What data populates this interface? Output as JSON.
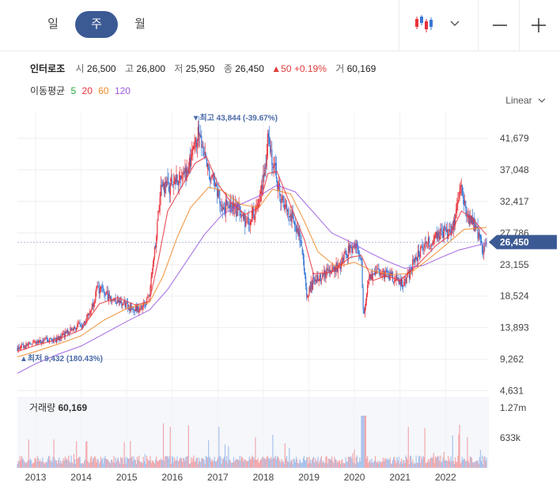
{
  "tabs": [
    "일",
    "주",
    "월"
  ],
  "active_tab": 1,
  "toolbar": {
    "chart_type_icon": "candlestick-chart-icon",
    "zoom_out_icon": "minus-icon",
    "zoom_in_icon": "plus-icon"
  },
  "stock": {
    "name": "인터로조",
    "open_label": "시",
    "open": "26,500",
    "high_label": "고",
    "high": "26,800",
    "low_label": "저",
    "low": "25,950",
    "close_label": "종",
    "close": "26,450",
    "change": "▲50 +0.19%",
    "volume_label": "거",
    "volume": "60,169"
  },
  "moving_average": {
    "label": "이동평균",
    "periods": [
      {
        "value": "5",
        "color": "#22a83a"
      },
      {
        "value": "20",
        "color": "#e8323c"
      },
      {
        "value": "60",
        "color": "#f08a28"
      },
      {
        "value": "120",
        "color": "#9b5be0"
      }
    ]
  },
  "scale_label": "Linear",
  "colors": {
    "up": "#e8323c",
    "down": "#3a78d6",
    "accent": "#3b5a94",
    "ma5": "#22a83a",
    "ma20": "#e8323c",
    "ma60": "#f08a28",
    "ma120": "#9b5be0"
  },
  "chart_data": {
    "type": "candlestick",
    "price_ticks": [
      "41,679",
      "37,048",
      "32,417",
      "27,786",
      "23,155",
      "18,524",
      "13,893",
      "9,262",
      "4,631"
    ],
    "price_tick_values": [
      41679,
      37048,
      32417,
      27786,
      23155,
      18524,
      13893,
      9262,
      4631
    ],
    "ylim": [
      4000,
      45500
    ],
    "x_ticks": [
      "2013",
      "2014",
      "2015",
      "2016",
      "2017",
      "2018",
      "2019",
      "2020",
      "2021",
      "2022"
    ],
    "x_tick_values": [
      2013,
      2014,
      2015,
      2016,
      2017,
      2018,
      2019,
      2020,
      2021,
      2022
    ],
    "xlim": [
      2012.6,
      2022.95
    ],
    "last_price_label": "26,450",
    "last_price": 26450,
    "max_annotation": "▼최고 43,844 (-39.67%)",
    "max_value": 43844,
    "max_x": 2016.57,
    "min_annotation": "▲최저 9,432 (180.43%)",
    "min_value": 9432,
    "min_x": 2012.62,
    "close_path": [
      [
        2012.6,
        10800
      ],
      [
        2012.8,
        11300
      ],
      [
        2013.0,
        11700
      ],
      [
        2013.2,
        12100
      ],
      [
        2013.4,
        12000
      ],
      [
        2013.6,
        12800
      ],
      [
        2013.8,
        13700
      ],
      [
        2014.0,
        14300
      ],
      [
        2014.2,
        16300
      ],
      [
        2014.35,
        19600
      ],
      [
        2014.5,
        19000
      ],
      [
        2014.7,
        18000
      ],
      [
        2014.9,
        17600
      ],
      [
        2015.05,
        17000
      ],
      [
        2015.2,
        16600
      ],
      [
        2015.35,
        17000
      ],
      [
        2015.5,
        18400
      ],
      [
        2015.65,
        27500
      ],
      [
        2015.75,
        34000
      ],
      [
        2015.9,
        34500
      ],
      [
        2016.1,
        35600
      ],
      [
        2016.3,
        36500
      ],
      [
        2016.5,
        40000
      ],
      [
        2016.57,
        43600
      ],
      [
        2016.7,
        39000
      ],
      [
        2016.9,
        35200
      ],
      [
        2017.1,
        32000
      ],
      [
        2017.3,
        31500
      ],
      [
        2017.5,
        31000
      ],
      [
        2017.6,
        29500
      ],
      [
        2017.75,
        30400
      ],
      [
        2017.9,
        32600
      ],
      [
        2018.05,
        37800
      ],
      [
        2018.1,
        42800
      ],
      [
        2018.2,
        38600
      ],
      [
        2018.35,
        33800
      ],
      [
        2018.5,
        31500
      ],
      [
        2018.7,
        29000
      ],
      [
        2018.85,
        26000
      ],
      [
        2018.95,
        18500
      ],
      [
        2019.1,
        20800
      ],
      [
        2019.3,
        21500
      ],
      [
        2019.5,
        22500
      ],
      [
        2019.7,
        23200
      ],
      [
        2019.9,
        25500
      ],
      [
        2020.05,
        25800
      ],
      [
        2020.15,
        23500
      ],
      [
        2020.2,
        15500
      ],
      [
        2020.3,
        21000
      ],
      [
        2020.5,
        22300
      ],
      [
        2020.7,
        21600
      ],
      [
        2020.9,
        21000
      ],
      [
        2021.1,
        20300
      ],
      [
        2021.3,
        23500
      ],
      [
        2021.5,
        25500
      ],
      [
        2021.7,
        26700
      ],
      [
        2021.9,
        28000
      ],
      [
        2022.1,
        27600
      ],
      [
        2022.25,
        31200
      ],
      [
        2022.33,
        34800
      ],
      [
        2022.45,
        30500
      ],
      [
        2022.6,
        29300
      ],
      [
        2022.75,
        27000
      ],
      [
        2022.83,
        25000
      ],
      [
        2022.9,
        26450
      ]
    ],
    "ma20": [
      [
        2012.6,
        10400
      ],
      [
        2013.0,
        11300
      ],
      [
        2013.5,
        12200
      ],
      [
        2014.0,
        13600
      ],
      [
        2014.4,
        17400
      ],
      [
        2014.8,
        18300
      ],
      [
        2015.2,
        17200
      ],
      [
        2015.5,
        17800
      ],
      [
        2015.7,
        24000
      ],
      [
        2015.9,
        31000
      ],
      [
        2016.2,
        34500
      ],
      [
        2016.5,
        38000
      ],
      [
        2016.75,
        39000
      ],
      [
        2017.0,
        35000
      ],
      [
        2017.3,
        32200
      ],
      [
        2017.6,
        30500
      ],
      [
        2017.9,
        31500
      ],
      [
        2018.1,
        36500
      ],
      [
        2018.3,
        36800
      ],
      [
        2018.6,
        31800
      ],
      [
        2018.9,
        26800
      ],
      [
        2019.1,
        21800
      ],
      [
        2019.5,
        22000
      ],
      [
        2019.9,
        24200
      ],
      [
        2020.15,
        24500
      ],
      [
        2020.4,
        20800
      ],
      [
        2020.7,
        21500
      ],
      [
        2021.0,
        20800
      ],
      [
        2021.4,
        23200
      ],
      [
        2021.8,
        26000
      ],
      [
        2022.1,
        27500
      ],
      [
        2022.35,
        31000
      ],
      [
        2022.6,
        29800
      ],
      [
        2022.9,
        27500
      ]
    ],
    "ma60": [
      [
        2012.6,
        9600
      ],
      [
        2013.0,
        10400
      ],
      [
        2013.5,
        11500
      ],
      [
        2014.0,
        12700
      ],
      [
        2014.5,
        15000
      ],
      [
        2015.0,
        16700
      ],
      [
        2015.5,
        17600
      ],
      [
        2015.8,
        21500
      ],
      [
        2016.1,
        27000
      ],
      [
        2016.4,
        31500
      ],
      [
        2016.8,
        34500
      ],
      [
        2017.1,
        34000
      ],
      [
        2017.5,
        32000
      ],
      [
        2017.9,
        31500
      ],
      [
        2018.2,
        34200
      ],
      [
        2018.6,
        33500
      ],
      [
        2018.9,
        29500
      ],
      [
        2019.2,
        25000
      ],
      [
        2019.6,
        22800
      ],
      [
        2020.0,
        23500
      ],
      [
        2020.4,
        22200
      ],
      [
        2020.8,
        21700
      ],
      [
        2021.2,
        21800
      ],
      [
        2021.6,
        23800
      ],
      [
        2022.0,
        26000
      ],
      [
        2022.4,
        28300
      ],
      [
        2022.9,
        28600
      ]
    ],
    "ma120": [
      [
        2012.6,
        7200
      ],
      [
        2013.0,
        8600
      ],
      [
        2013.5,
        10000
      ],
      [
        2014.0,
        11200
      ],
      [
        2014.5,
        13000
      ],
      [
        2015.0,
        14800
      ],
      [
        2015.5,
        16500
      ],
      [
        2015.9,
        19500
      ],
      [
        2016.3,
        23500
      ],
      [
        2016.7,
        27500
      ],
      [
        2017.1,
        30500
      ],
      [
        2017.5,
        32000
      ],
      [
        2017.9,
        33200
      ],
      [
        2018.3,
        34800
      ],
      [
        2018.7,
        33800
      ],
      [
        2019.1,
        30800
      ],
      [
        2019.5,
        27800
      ],
      [
        2019.9,
        26500
      ],
      [
        2020.3,
        25000
      ],
      [
        2020.7,
        23700
      ],
      [
        2021.1,
        22600
      ],
      [
        2021.5,
        23000
      ],
      [
        2021.9,
        24200
      ],
      [
        2022.3,
        25300
      ],
      [
        2022.9,
        26300
      ]
    ],
    "volume_label": "거래량",
    "volume_value": "60,169",
    "volume_ticks": [
      "1.27m",
      "633k"
    ],
    "volume_tick_values": [
      1270000,
      633000
    ],
    "volume_max": 1500000
  }
}
